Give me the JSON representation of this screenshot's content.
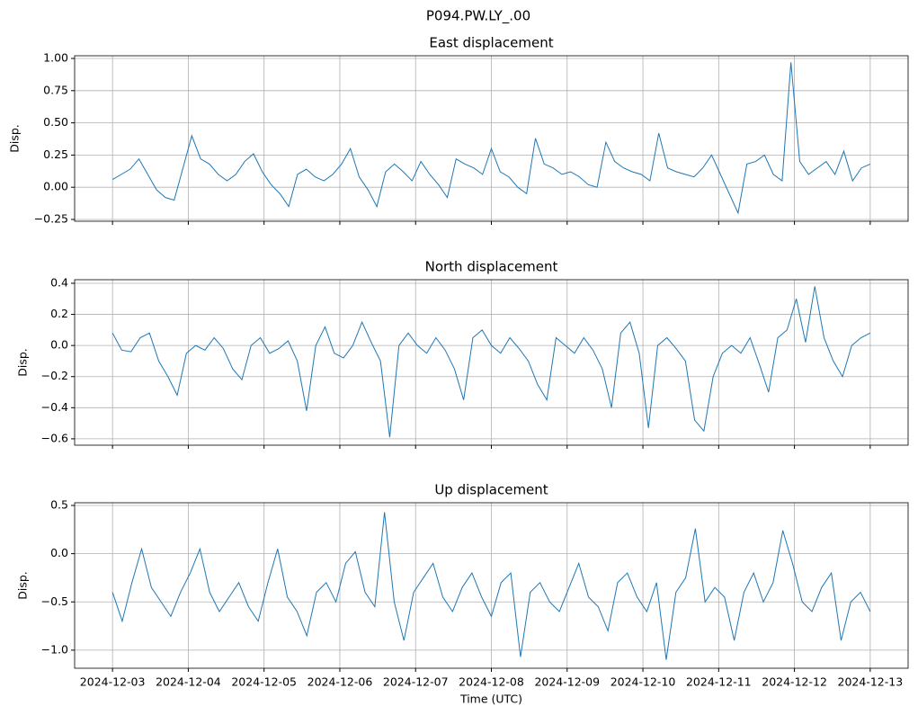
{
  "title": "P094.PW.LY_.00",
  "chart_data": [
    {
      "type": "line",
      "title": "East displacement",
      "ylabel": "Disp.",
      "color": "#1f77b4",
      "grid": true,
      "sharex": true,
      "ylim": [
        -0.264,
        1.021
      ],
      "yticks": [
        {
          "value": -0.25,
          "label": "−0.25"
        },
        {
          "value": 0,
          "label": "0.00"
        },
        {
          "value": 0.25,
          "label": "0.25"
        },
        {
          "value": 0.5,
          "label": "0.50"
        },
        {
          "value": 0.75,
          "label": "0.75"
        },
        {
          "value": 1,
          "label": "1.00"
        }
      ],
      "values": [
        0.06,
        0.1,
        0.14,
        0.22,
        0.1,
        -0.02,
        -0.08,
        -0.1,
        0.15,
        0.4,
        0.22,
        0.18,
        0.1,
        0.05,
        0.1,
        0.2,
        0.26,
        0.12,
        0.02,
        -0.05,
        -0.15,
        0.1,
        0.14,
        0.08,
        0.05,
        0.1,
        0.18,
        0.3,
        0.08,
        -0.02,
        -0.15,
        0.12,
        0.18,
        0.12,
        0.05,
        0.2,
        0.1,
        0.02,
        -0.08,
        0.22,
        0.18,
        0.15,
        0.1,
        0.3,
        0.12,
        0.08,
        0.0,
        -0.05,
        0.38,
        0.18,
        0.15,
        0.1,
        0.12,
        0.08,
        0.02,
        0.0,
        0.35,
        0.2,
        0.15,
        0.12,
        0.1,
        0.05,
        0.42,
        0.15,
        0.12,
        0.1,
        0.08,
        0.15,
        0.25,
        0.1,
        -0.05,
        -0.2,
        0.18,
        0.2,
        0.25,
        0.1,
        0.05,
        0.97,
        0.2,
        0.1,
        0.15,
        0.2,
        0.1,
        0.28,
        0.05,
        0.15,
        0.18
      ]
    },
    {
      "type": "line",
      "title": "North displacement",
      "ylabel": "Disp.",
      "color": "#1f77b4",
      "grid": true,
      "sharex": true,
      "ylim": [
        -0.641,
        0.423
      ],
      "yticks": [
        {
          "value": -0.6,
          "label": "−0.6"
        },
        {
          "value": -0.4,
          "label": "−0.4"
        },
        {
          "value": -0.2,
          "label": "−0.2"
        },
        {
          "value": 0,
          "label": "0.0"
        },
        0.2,
        0.4
      ],
      "values": [
        0.08,
        -0.03,
        -0.04,
        0.05,
        0.08,
        -0.1,
        -0.2,
        -0.32,
        -0.05,
        0.0,
        -0.03,
        0.05,
        -0.02,
        -0.15,
        -0.22,
        0.0,
        0.05,
        -0.05,
        -0.02,
        0.03,
        -0.1,
        -0.42,
        0.0,
        0.12,
        -0.05,
        -0.08,
        0.0,
        0.15,
        0.02,
        -0.1,
        -0.59,
        0.0,
        0.08,
        0.0,
        -0.05,
        0.05,
        -0.03,
        -0.15,
        -0.35,
        0.05,
        0.1,
        0.0,
        -0.05,
        0.05,
        -0.02,
        -0.1,
        -0.25,
        -0.35,
        0.05,
        0.0,
        -0.05,
        0.05,
        -0.03,
        -0.15,
        -0.4,
        0.08,
        0.15,
        -0.05,
        -0.53,
        0.0,
        0.05,
        -0.02,
        -0.1,
        -0.48,
        -0.55,
        -0.2,
        -0.05,
        0.0,
        -0.05,
        0.05,
        -0.12,
        -0.3,
        0.05,
        0.1,
        0.3,
        0.02,
        0.38,
        0.05,
        -0.1,
        -0.2,
        0.0,
        0.05,
        0.08
      ]
    },
    {
      "type": "line",
      "title": "Up displacement",
      "ylabel": "Disp.",
      "xlabel": "Time (UTC)",
      "color": "#1f77b4",
      "grid": true,
      "ylim": [
        -1.1875,
        0.528
      ],
      "yticks": [
        {
          "value": -1,
          "label": "−1.0"
        },
        {
          "value": -0.5,
          "label": "−0.5"
        },
        {
          "value": 0,
          "label": "0.0"
        },
        0.5
      ],
      "xticks": [
        "2024-12-03",
        "2024-12-04",
        "2024-12-05",
        "2024-12-06",
        "2024-12-07",
        "2024-12-08",
        "2024-12-09",
        "2024-12-10",
        "2024-12-11",
        "2024-12-12",
        "2024-12-13"
      ],
      "values": [
        -0.4,
        -0.7,
        -0.3,
        0.05,
        -0.35,
        -0.5,
        -0.65,
        -0.4,
        -0.2,
        0.05,
        -0.4,
        -0.6,
        -0.45,
        -0.3,
        -0.55,
        -0.7,
        -0.3,
        0.05,
        -0.45,
        -0.6,
        -0.85,
        -0.4,
        -0.3,
        -0.5,
        -0.1,
        0.02,
        -0.4,
        -0.55,
        0.43,
        -0.5,
        -0.9,
        -0.4,
        -0.25,
        -0.1,
        -0.45,
        -0.6,
        -0.35,
        -0.2,
        -0.45,
        -0.65,
        -0.3,
        -0.2,
        -1.07,
        -0.4,
        -0.3,
        -0.5,
        -0.6,
        -0.35,
        -0.1,
        -0.45,
        -0.55,
        -0.8,
        -0.3,
        -0.2,
        -0.45,
        -0.6,
        -0.3,
        -1.1,
        -0.4,
        -0.25,
        0.26,
        -0.5,
        -0.35,
        -0.45,
        -0.9,
        -0.4,
        -0.2,
        -0.5,
        -0.3,
        0.24,
        -0.1,
        -0.5,
        -0.6,
        -0.35,
        -0.2,
        -0.9,
        -0.5,
        -0.4,
        -0.6
      ]
    }
  ]
}
